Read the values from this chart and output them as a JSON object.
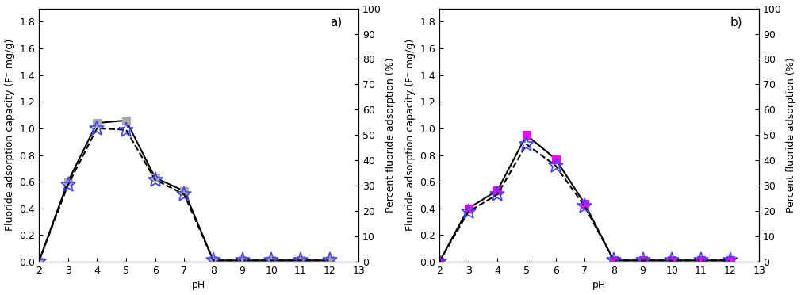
{
  "panel_a": {
    "label": "a)",
    "pH": [
      2,
      3,
      4,
      5,
      6,
      7,
      8,
      9,
      10,
      11,
      12
    ],
    "capacity": [
      0.0,
      0.6,
      1.04,
      1.06,
      0.63,
      0.53,
      0.01,
      0.01,
      0.01,
      0.01,
      0.01
    ],
    "efficiency": [
      0.0,
      0.575,
      1.0,
      0.99,
      0.615,
      0.505,
      0.01,
      0.01,
      0.01,
      0.01,
      0.01
    ],
    "capacity_color": "#aaaaaa",
    "efficiency_color": "#4444ff",
    "marker_capacity": "s",
    "marker_efficiency": "*"
  },
  "panel_b": {
    "label": "b)",
    "pH": [
      2,
      3,
      4,
      5,
      6,
      7,
      8,
      9,
      10,
      11,
      12
    ],
    "capacity": [
      0.0,
      0.4,
      0.535,
      0.95,
      0.77,
      0.435,
      0.01,
      0.01,
      0.01,
      0.01,
      0.01
    ],
    "efficiency": [
      0.0,
      0.375,
      0.505,
      0.88,
      0.72,
      0.415,
      0.01,
      0.01,
      0.01,
      0.01,
      0.01
    ],
    "capacity_color": "#ff00ff",
    "efficiency_color": "#4444ff",
    "marker_capacity": "s",
    "marker_efficiency": "*"
  },
  "ylim_left": [
    0.0,
    1.9
  ],
  "ylim_right": [
    0,
    100
  ],
  "xlim": [
    2,
    13
  ],
  "xticks": [
    2,
    3,
    4,
    5,
    6,
    7,
    8,
    9,
    10,
    11,
    12,
    13
  ],
  "yticks_left": [
    0.0,
    0.2,
    0.4,
    0.6,
    0.8,
    1.0,
    1.2,
    1.4,
    1.6,
    1.8
  ],
  "yticks_right": [
    0,
    10,
    20,
    30,
    40,
    50,
    60,
    70,
    80,
    90,
    100
  ],
  "xlabel": "pH",
  "ylabel_left": "Fluoride adsorption capacity (F⁻ mg/g)",
  "ylabel_right": "Percent fluoride adsorption (%)",
  "line_color": "#000000",
  "line_width": 1.5,
  "capacity_marker_size": 7,
  "efficiency_marker_size": 14,
  "background_color": "#ffffff",
  "tick_fontsize": 9,
  "label_fontsize": 9,
  "panel_label_fontsize": 11
}
